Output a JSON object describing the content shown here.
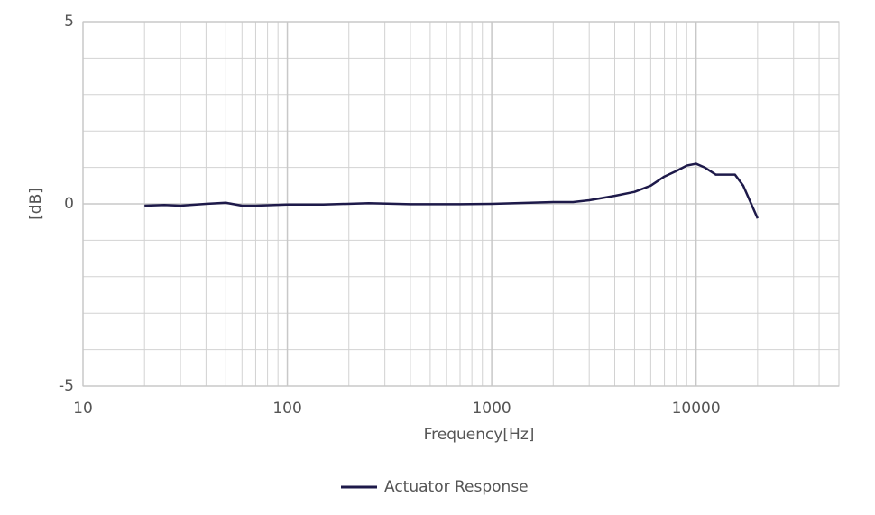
{
  "chart_data": {
    "type": "line",
    "x_label": "Frequency[Hz]",
    "y_label": "[dB]",
    "x_log": true,
    "grid": true,
    "xlim": [
      10,
      50000
    ],
    "xticks": [
      10,
      100,
      1000,
      10000
    ],
    "x_minor_grid": [
      20,
      30,
      40,
      50,
      60,
      70,
      80,
      90,
      200,
      300,
      400,
      500,
      600,
      700,
      800,
      900,
      2000,
      3000,
      4000,
      5000,
      6000,
      7000,
      8000,
      9000,
      20000,
      30000,
      40000
    ],
    "ylim": [
      -5,
      5
    ],
    "yticks": [
      -5,
      0,
      5
    ],
    "y_minor_grid": [
      -4,
      -3,
      -2,
      -1,
      1,
      2,
      3,
      4
    ],
    "legend": "bottom",
    "x": [
      20,
      25,
      30,
      40,
      50,
      60,
      70,
      100,
      150,
      250,
      400,
      700,
      1000,
      2000,
      2500,
      3000,
      4000,
      5000,
      6000,
      7000,
      8000,
      9000,
      10000,
      11000,
      12500,
      14000,
      15500,
      17000,
      20000
    ],
    "series": [
      {
        "name": "Actuator Response",
        "color": "#1e1a4a",
        "values": [
          -0.05,
          -0.03,
          -0.05,
          0.0,
          0.03,
          -0.05,
          -0.05,
          -0.02,
          -0.02,
          0.02,
          -0.01,
          -0.01,
          0.0,
          0.05,
          0.05,
          0.1,
          0.22,
          0.33,
          0.5,
          0.75,
          0.9,
          1.05,
          1.1,
          1.0,
          0.8,
          0.8,
          0.8,
          0.5,
          -0.4
        ]
      }
    ]
  }
}
